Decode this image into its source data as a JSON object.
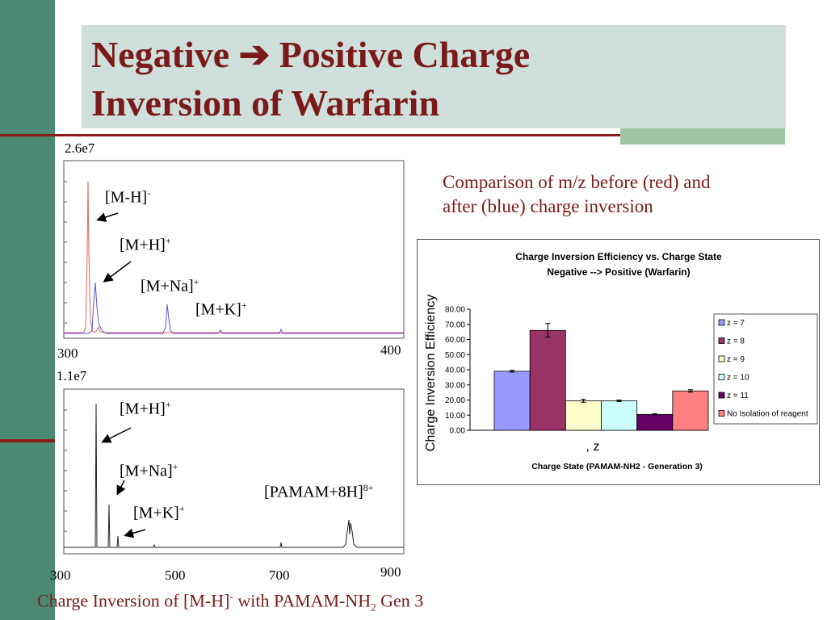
{
  "slide": {
    "title_line1": "Negative",
    "title_arrow": "➔",
    "title_line1b": "Positive Charge",
    "title_line2": "Inversion of  Warfarin",
    "comparison_line1": "Comparison of  m/z before (red) and",
    "comparison_line2": "after (blue) charge inversion",
    "caption_main": "Charge Inversion of  [M-H]",
    "caption_sup": "-",
    "caption_mid": " with PAMAM-NH",
    "caption_sub": "2",
    "caption_end": " Gen 3",
    "colors": {
      "title": "#7b1a1a",
      "leftbar": "#4a8a72",
      "titlebox": "#cfe0dc",
      "rule": "#8b1c1c"
    }
  },
  "spectrum_top": {
    "intensity_max": "2.6e7",
    "x_start": "300",
    "x_end": "400",
    "labels": [
      {
        "base": "[M-H]",
        "sup": "-"
      },
      {
        "base": "[M+H]",
        "sup": "+"
      },
      {
        "base": "[M+Na]",
        "sup": "+"
      },
      {
        "base": "[M+K]",
        "sup": "+"
      }
    ]
  },
  "spectrum_bottom": {
    "intensity_max": "1.1e7",
    "ticks": [
      "300",
      "500",
      "700",
      "900"
    ],
    "labels": [
      {
        "base": "[M+H]",
        "sup": "+"
      },
      {
        "base": "[M+Na]",
        "sup": "+"
      },
      {
        "base": "[M+K]",
        "sup": "+"
      },
      {
        "base": "[PAMAM+8H]",
        "sup": "8+"
      }
    ]
  },
  "chart_data": {
    "type": "bar",
    "title": "Charge Inversion Efficiency vs. Charge State",
    "subtitle": "Negative --> Positive (Warfarin)",
    "ylabel": "Charge Inversion Efficiency",
    "xlabel": "Charge State (PAMAM-NH2 - Generation 3)",
    "x_axis_text": ", z",
    "ylim": [
      0,
      80
    ],
    "yticks": [
      "0.00",
      "10.00",
      "20.00",
      "30.00",
      "40.00",
      "50.00",
      "60.00",
      "70.00",
      "80.00"
    ],
    "legend_position": "right",
    "series": [
      {
        "name": "z = 7",
        "value": 39,
        "error": 0.6,
        "color": "#9999ff"
      },
      {
        "name": "z = 8",
        "value": 66,
        "error": 4.5,
        "color": "#993366"
      },
      {
        "name": "z = 9",
        "value": 19.5,
        "error": 1.0,
        "color": "#ffffcc"
      },
      {
        "name": "z = 10",
        "value": 19.5,
        "error": 0.5,
        "color": "#ccffff"
      },
      {
        "name": "z = 11",
        "value": 10.5,
        "error": 0.4,
        "color": "#660066"
      },
      {
        "name": "No Isolation of reagent",
        "value": 26,
        "error": 0.8,
        "color": "#ff8080"
      }
    ]
  }
}
